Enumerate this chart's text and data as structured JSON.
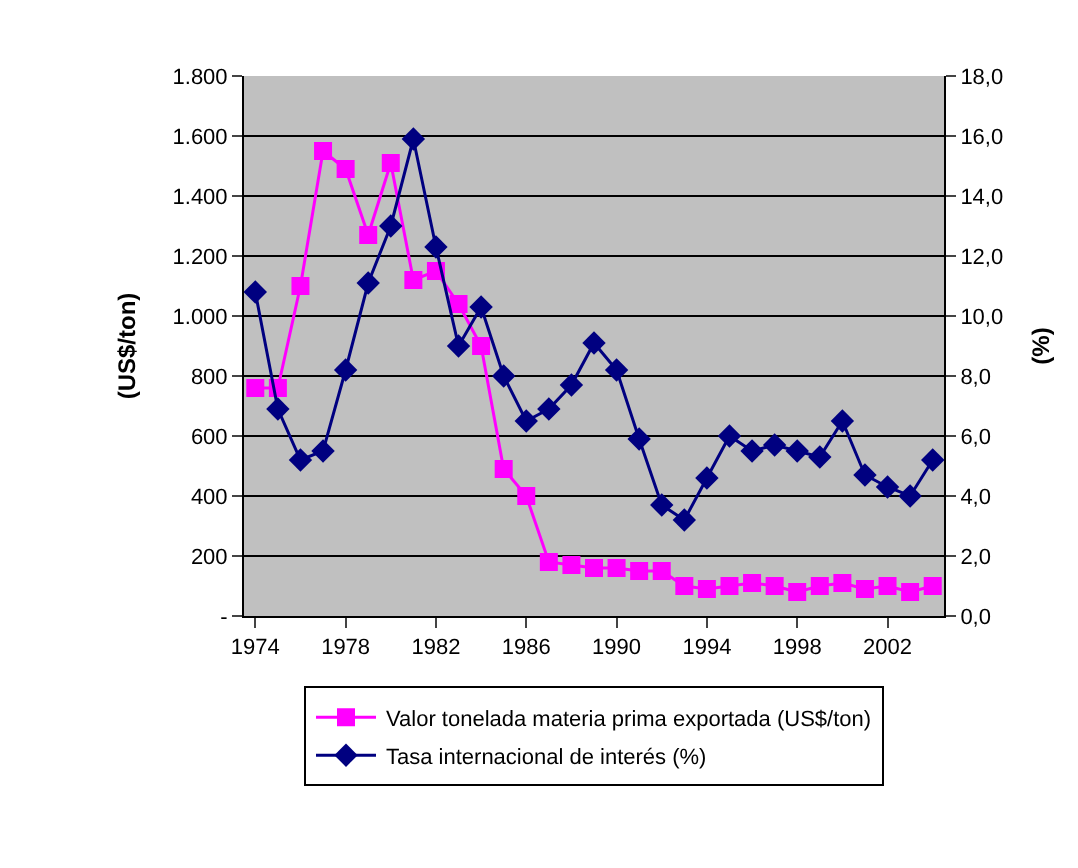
{
  "chart_data": {
    "type": "line",
    "x": [
      1974,
      1975,
      1976,
      1977,
      1978,
      1979,
      1980,
      1981,
      1982,
      1983,
      1984,
      1985,
      1986,
      1987,
      1988,
      1989,
      1990,
      1991,
      1992,
      1993,
      1994,
      1995,
      1996,
      1997,
      1998,
      1999,
      2000,
      2001,
      2002,
      2003,
      2004
    ],
    "series": [
      {
        "name": "Valor tonelada materia prima exportada (US$/ton)",
        "color": "#ff00ff",
        "marker": "square",
        "values": [
          760,
          760,
          1100,
          1550,
          1490,
          1270,
          1510,
          1120,
          1150,
          1040,
          900,
          490,
          400,
          180,
          170,
          160,
          160,
          150,
          150,
          100,
          90,
          100,
          110,
          100,
          80,
          100,
          110,
          90,
          100,
          80,
          100
        ]
      },
      {
        "name": "Tasa internacional de interés (%)",
        "color": "#000080",
        "marker": "diamond",
        "axis": "y2",
        "values": [
          10.8,
          6.9,
          5.2,
          5.5,
          8.2,
          11.1,
          13.0,
          15.9,
          12.3,
          9.0,
          10.3,
          8.0,
          6.5,
          6.9,
          7.7,
          9.1,
          8.2,
          5.9,
          3.7,
          3.2,
          4.6,
          6.0,
          5.5,
          5.7,
          5.5,
          5.3,
          6.5,
          4.7,
          4.3,
          4.0,
          5.2
        ]
      }
    ],
    "ylabel": "(US$/ton)",
    "y2label": "(%)",
    "xlim": [
      1973.5,
      2004.5
    ],
    "xticks": [
      1974,
      1978,
      1982,
      1986,
      1990,
      1994,
      1998,
      2002
    ],
    "ylim": [
      0,
      1800
    ],
    "yticks": [
      {
        "value": 0,
        "label": "-"
      },
      200,
      400,
      600,
      800,
      {
        "value": 1000,
        "label": "1.000"
      },
      {
        "value": 1200,
        "label": "1.200"
      },
      {
        "value": 1400,
        "label": "1.400"
      },
      {
        "value": 1600,
        "label": "1.600"
      },
      {
        "value": 1800,
        "label": "1.800"
      }
    ],
    "y2lim": [
      0,
      18
    ],
    "y2ticks": [
      {
        "value": 0,
        "label": "0,0"
      },
      {
        "value": 2,
        "label": "2,0"
      },
      {
        "value": 4,
        "label": "4,0"
      },
      {
        "value": 6,
        "label": "6,0"
      },
      {
        "value": 8,
        "label": "8,0"
      },
      {
        "value": 10,
        "label": "10,0"
      },
      {
        "value": 12,
        "label": "12,0"
      },
      {
        "value": 14,
        "label": "14,0"
      },
      {
        "value": 16,
        "label": "16,0"
      },
      {
        "value": 18,
        "label": "18,0"
      }
    ],
    "grid": "y",
    "legend": "bottom",
    "line_style": "solid"
  }
}
